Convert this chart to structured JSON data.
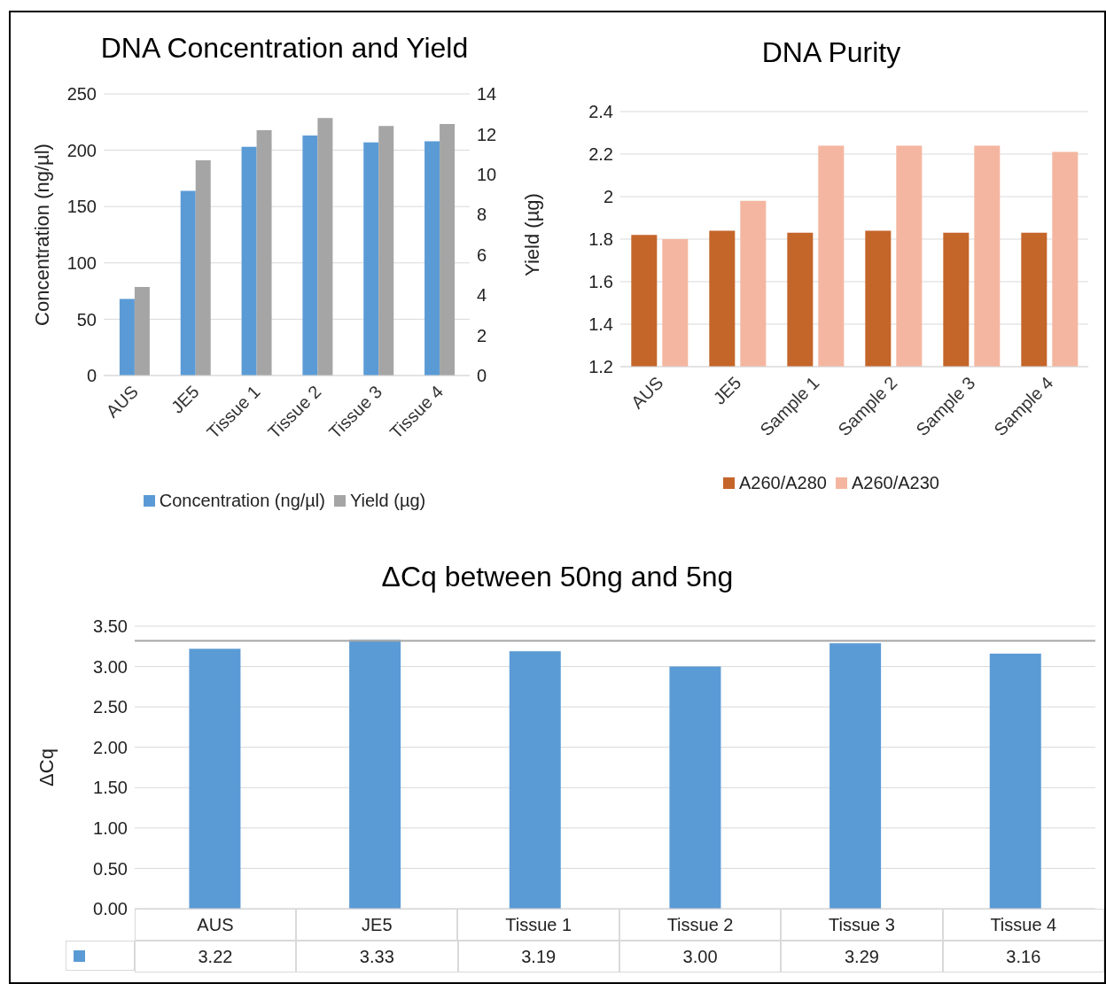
{
  "chart_data": [
    {
      "type": "bar",
      "title": "DNA Concentration and Yield",
      "ylabel": "Concentration (ng/µl)",
      "y2label": "Yield (µg)",
      "categories": [
        "AUS",
        "JE5",
        "Tissue 1",
        "Tissue 2",
        "Tissue 3",
        "Tissue 4"
      ],
      "series": [
        {
          "name": "Concentration (ng/µl)",
          "color": "#5b9bd5",
          "values": [
            68,
            164,
            203,
            213,
            207,
            208
          ]
        },
        {
          "name": "Yield (µg)",
          "color": "#a5a5a5",
          "axis": "y2",
          "values": [
            4.4,
            10.7,
            12.2,
            12.8,
            12.4,
            12.5
          ]
        }
      ],
      "ylim": [
        0,
        250
      ],
      "yticks": [
        0,
        50,
        100,
        150,
        200,
        250
      ],
      "y2lim": [
        0,
        14
      ],
      "y2ticks": [
        0,
        2,
        4,
        6,
        8,
        10,
        12,
        14
      ],
      "grid": "y",
      "legend": "bottom"
    },
    {
      "type": "bar",
      "title": "DNA Purity",
      "categories": [
        "AUS",
        "JE5",
        "Sample 1",
        "Sample 2",
        "Sample 3",
        "Sample 4"
      ],
      "series": [
        {
          "name": "A260/A280",
          "color": "#c4652a",
          "values": [
            1.82,
            1.84,
            1.83,
            1.84,
            1.83,
            1.83
          ]
        },
        {
          "name": "A260/A230",
          "color": "#f4b6a0",
          "values": [
            1.8,
            1.98,
            2.24,
            2.24,
            2.24,
            2.21
          ]
        }
      ],
      "ylim": [
        1.2,
        2.4
      ],
      "yticks": [
        1.2,
        1.4,
        1.6,
        1.8,
        2,
        2.2,
        2.4
      ],
      "grid": "y",
      "legend": "bottom"
    },
    {
      "type": "bar",
      "title": "ΔCq between 50ng and 5ng",
      "ylabel": "ΔCq",
      "categories": [
        "AUS",
        "JE5",
        "Tissue 1",
        "Tissue 2",
        "Tissue 3",
        "Tissue 4"
      ],
      "series": [
        {
          "color": "#5b9bd5",
          "values": [
            3.22,
            3.33,
            3.19,
            3.0,
            3.29,
            3.16
          ],
          "value_labels": [
            "3.22",
            "3.33",
            "3.19",
            "3.00",
            "3.29",
            "3.16"
          ]
        }
      ],
      "ylim": [
        0,
        3.5
      ],
      "yticks": [
        {
          "value": 0,
          "label": "0.00"
        },
        {
          "value": 0.5,
          "label": "0.50"
        },
        {
          "value": 1,
          "label": "1.00"
        },
        {
          "value": 1.5,
          "label": "1.50"
        },
        {
          "value": 2,
          "label": "2.00"
        },
        {
          "value": 2.5,
          "label": "2.50"
        },
        {
          "value": 3,
          "label": "3.00"
        },
        {
          "value": 3.5,
          "label": "3.50"
        }
      ],
      "ref_lines": [
        {
          "axis": "y",
          "value": 3.32,
          "color": "#a5a5a5"
        }
      ],
      "grid": "y"
    }
  ]
}
